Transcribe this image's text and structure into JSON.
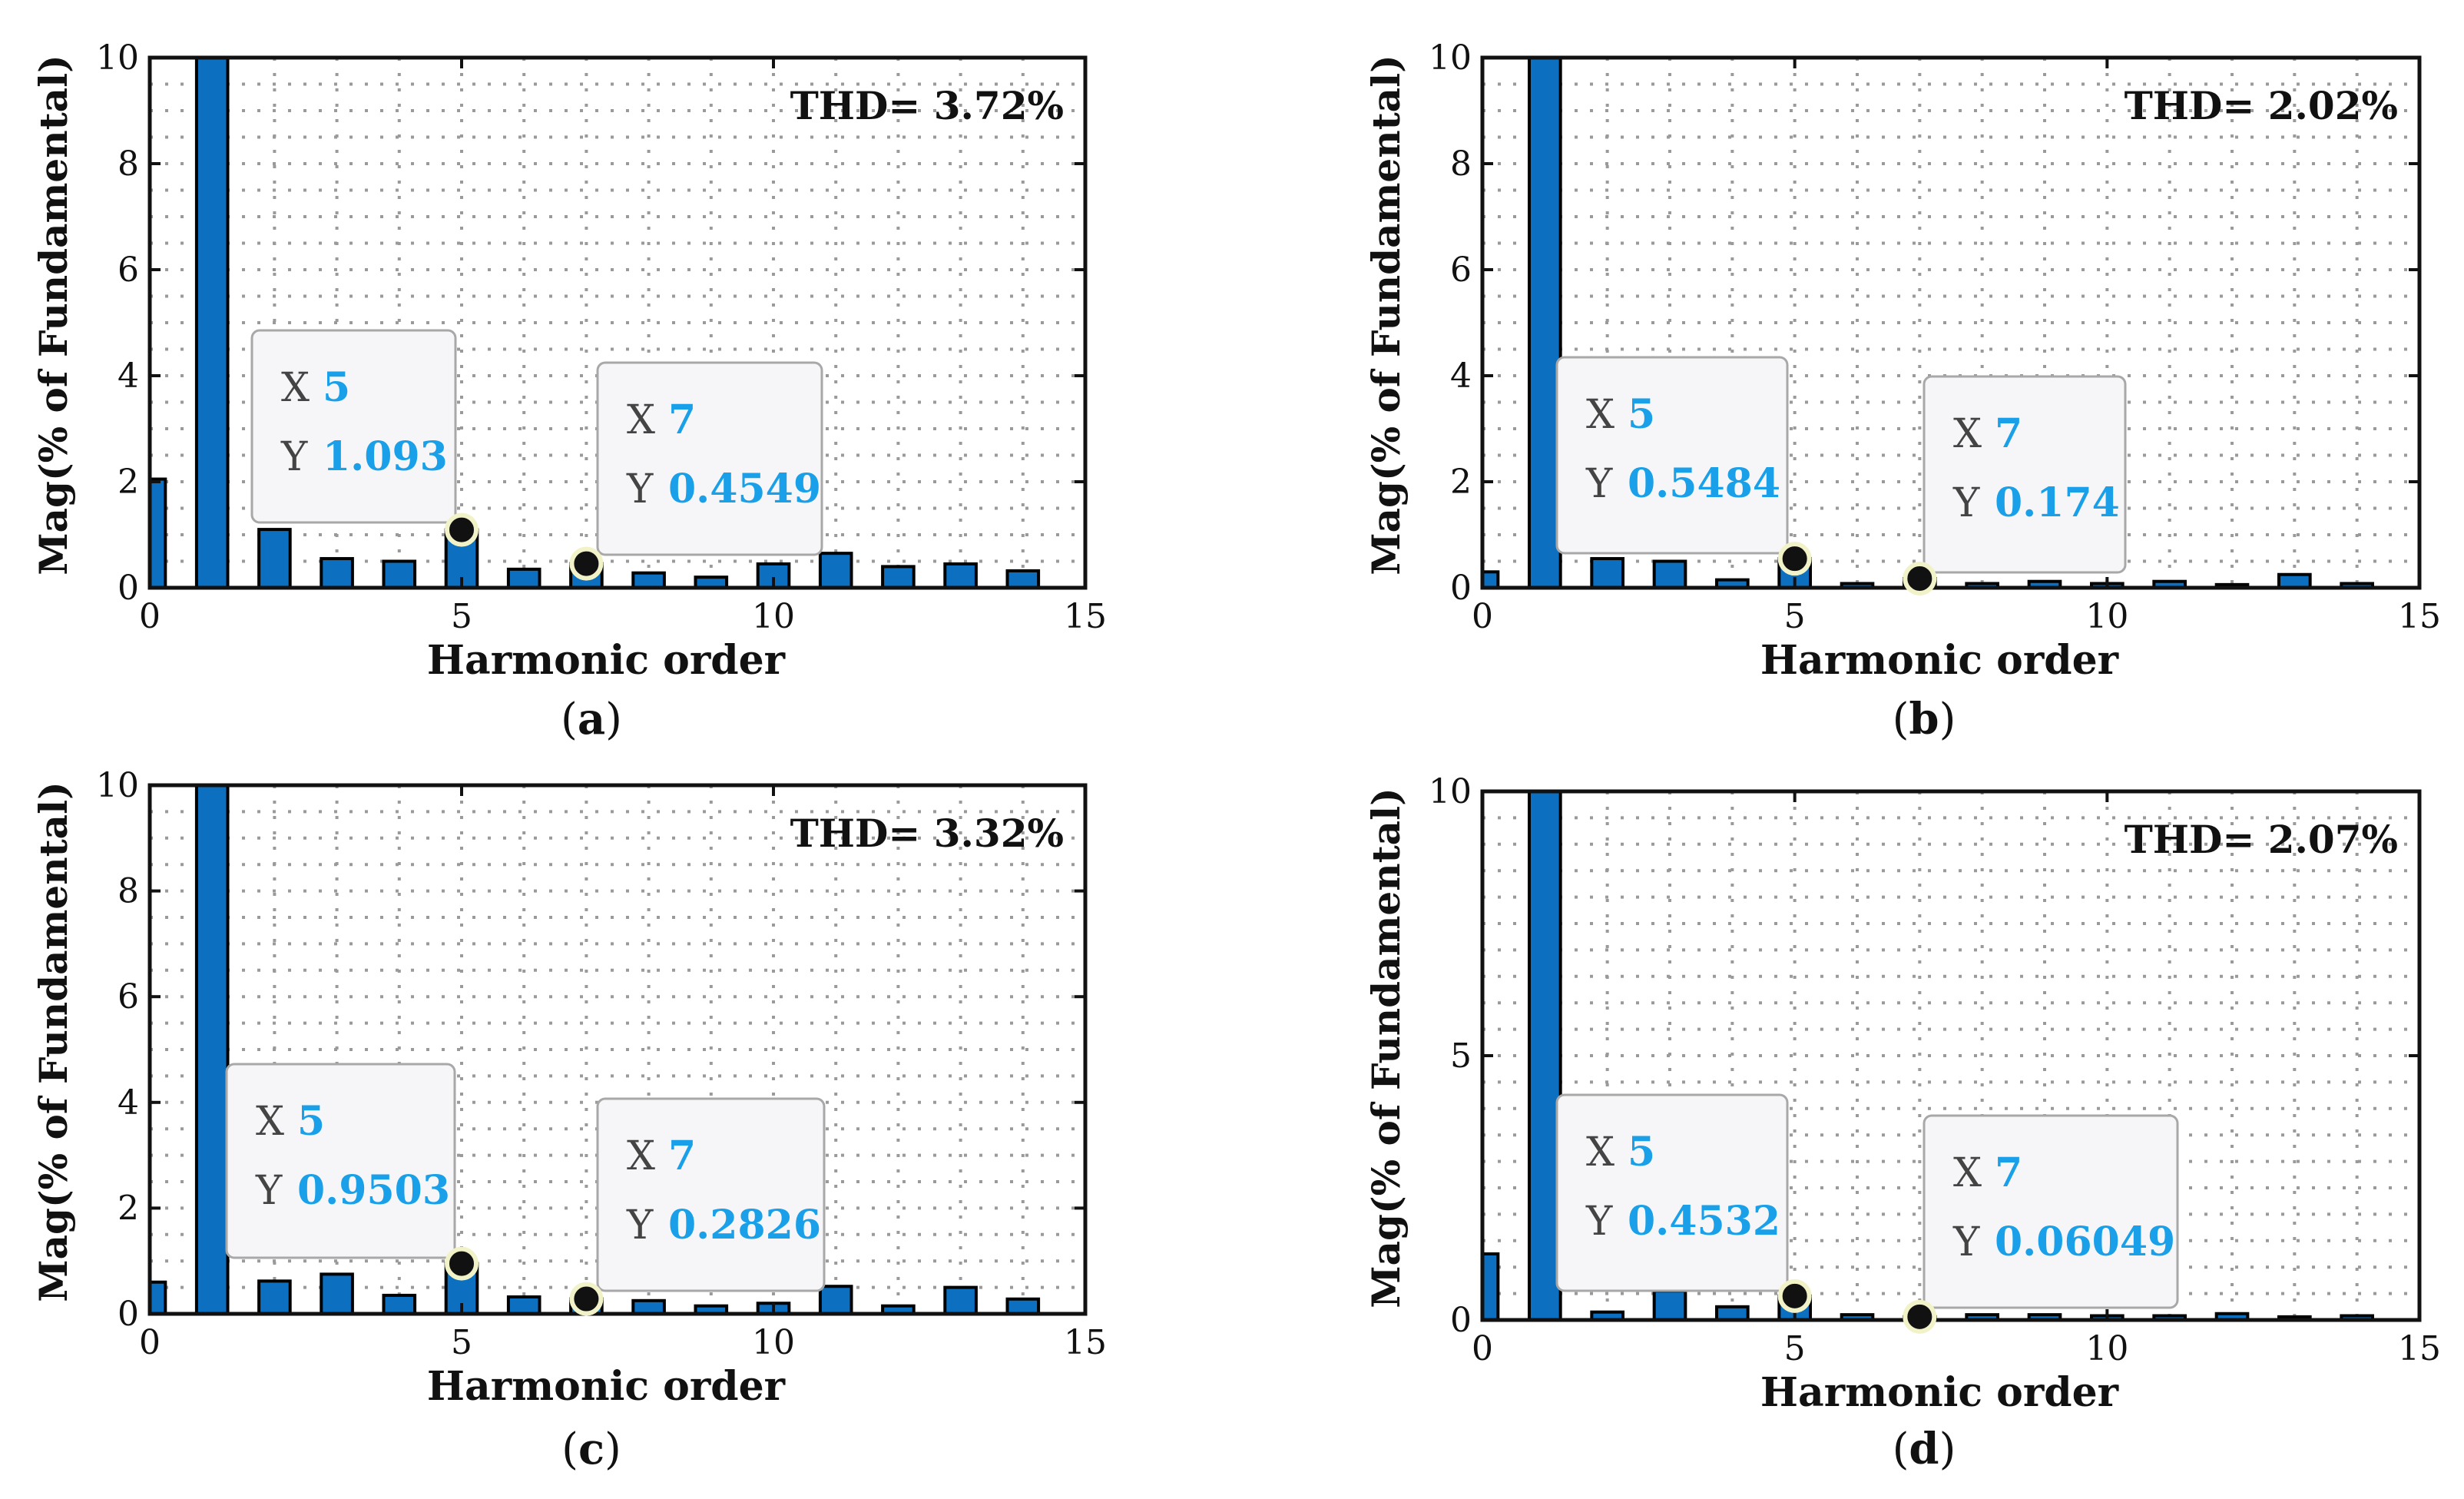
{
  "chart_data": [
    {
      "type": "bar",
      "panel_label": "a",
      "xlabel": "Harmonic order",
      "ylabel": "Mag(% of Fundamental)",
      "xlim": [
        0,
        15
      ],
      "ylim": [
        0,
        10
      ],
      "xticks": [
        0,
        5,
        10,
        15
      ],
      "yticks": [
        0,
        2,
        4,
        6,
        8,
        10
      ],
      "grid": true,
      "annotation": "THD= 3.72%",
      "x": [
        0,
        1,
        2,
        3,
        4,
        5,
        6,
        7,
        8,
        9,
        10,
        11,
        12,
        13,
        14
      ],
      "values": [
        2.05,
        10,
        1.1,
        0.55,
        0.5,
        1.093,
        0.35,
        0.4549,
        0.28,
        0.2,
        0.45,
        0.65,
        0.4,
        0.45,
        0.32
      ],
      "datatips": [
        {
          "x_key": "X",
          "x": "5",
          "y_key": "Y",
          "y": "1.093",
          "px": 5,
          "py": 1.093
        },
        {
          "x_key": "X",
          "x": "7",
          "y_key": "Y",
          "y": "0.4549",
          "px": 7,
          "py": 0.4549
        }
      ]
    },
    {
      "type": "bar",
      "panel_label": "b",
      "xlabel": "Harmonic order",
      "ylabel": "Mag(% of Fundamental)",
      "xlim": [
        0,
        15
      ],
      "ylim": [
        0,
        10
      ],
      "xticks": [
        0,
        5,
        10,
        15
      ],
      "yticks": [
        0,
        2,
        4,
        6,
        8,
        10
      ],
      "grid": true,
      "annotation": "THD= 2.02%",
      "x": [
        0,
        1,
        2,
        3,
        4,
        5,
        6,
        7,
        8,
        9,
        10,
        11,
        12,
        13,
        14
      ],
      "values": [
        0.3,
        10,
        0.55,
        0.5,
        0.15,
        0.5484,
        0.08,
        0.174,
        0.08,
        0.12,
        0.08,
        0.12,
        0.06,
        0.25,
        0.08
      ],
      "datatips": [
        {
          "x_key": "X",
          "x": "5",
          "y_key": "Y",
          "y": "0.5484",
          "px": 5,
          "py": 0.5484
        },
        {
          "x_key": "X",
          "x": "7",
          "y_key": "Y",
          "y": "0.174",
          "px": 7,
          "py": 0.174
        }
      ]
    },
    {
      "type": "bar",
      "panel_label": "c",
      "xlabel": "Harmonic order",
      "ylabel": "Mag(% of Fundamental)",
      "xlim": [
        0,
        15
      ],
      "ylim": [
        0,
        10
      ],
      "xticks": [
        0,
        5,
        10,
        15
      ],
      "yticks": [
        0,
        2,
        4,
        6,
        8,
        10
      ],
      "grid": true,
      "annotation": "THD= 3.32%",
      "x": [
        0,
        1,
        2,
        3,
        4,
        5,
        6,
        7,
        8,
        9,
        10,
        11,
        12,
        13,
        14
      ],
      "values": [
        0.6,
        10,
        0.62,
        0.75,
        0.35,
        0.9503,
        0.32,
        0.2826,
        0.25,
        0.15,
        0.2,
        0.52,
        0.15,
        0.5,
        0.28
      ],
      "datatips": [
        {
          "x_key": "X",
          "x": "5",
          "y_key": "Y",
          "y": "0.9503",
          "px": 5,
          "py": 0.9503
        },
        {
          "x_key": "X",
          "x": "7",
          "y_key": "Y",
          "y": "0.2826",
          "px": 7,
          "py": 0.2826
        }
      ]
    },
    {
      "type": "bar",
      "panel_label": "d",
      "xlabel": "Harmonic order",
      "ylabel": "Mag(% of Fundamental)",
      "xlim": [
        0,
        15
      ],
      "ylim": [
        0,
        10
      ],
      "xticks": [
        0,
        5,
        10,
        15
      ],
      "yticks": [
        0,
        5,
        10
      ],
      "grid": true,
      "annotation": "THD= 2.07%",
      "x": [
        0,
        1,
        2,
        3,
        4,
        5,
        6,
        7,
        8,
        9,
        10,
        11,
        12,
        13,
        14
      ],
      "values": [
        1.25,
        10,
        0.15,
        0.55,
        0.25,
        0.4532,
        0.1,
        0.06049,
        0.1,
        0.1,
        0.08,
        0.08,
        0.12,
        0.06,
        0.08
      ],
      "datatips": [
        {
          "x_key": "X",
          "x": "5",
          "y_key": "Y",
          "y": "0.4532",
          "px": 5,
          "py": 0.4532
        },
        {
          "x_key": "X",
          "x": "7",
          "y_key": "Y",
          "y": "0.06049",
          "px": 7,
          "py": 0.06049
        }
      ]
    }
  ],
  "colors": {
    "bar_fill": "#0c6fc0",
    "bar_stroke": "#000000",
    "datatip_value": "#1aa0e8",
    "datatip_key": "#444444"
  }
}
